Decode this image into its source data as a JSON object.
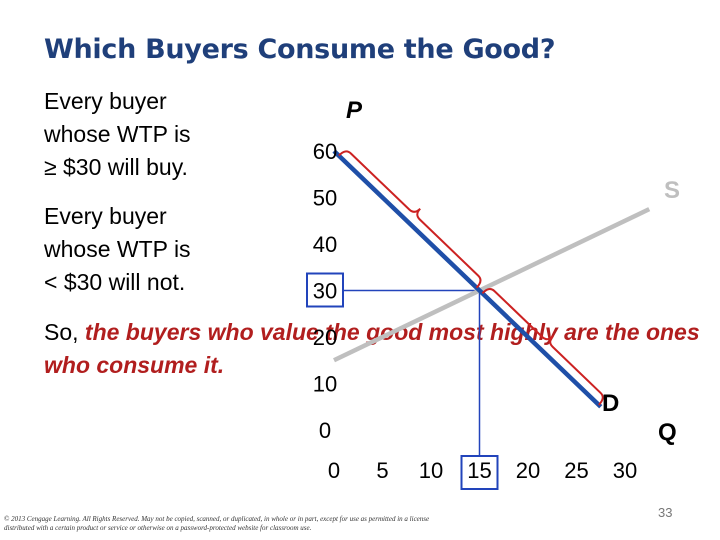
{
  "slide": {
    "title": "Which Buyers Consume the Good?",
    "para1": "Every buyer\nwhose WTP is\n≥ $30 will buy.",
    "para2": "Every buyer\nwhose WTP is\n< $30 will not.",
    "para3_prefix": "So, ",
    "para3_emphasis": "the buyers who value the good most highly are the ones who consume it.",
    "footer": "© 2013 Cengage Learning. All Rights Reserved. May not be copied, scanned, or duplicated, in whole or in part, except for use as permitted in a license distributed with a certain product or service or otherwise on a password-protected website for classroom use.",
    "page_number": "33"
  },
  "colors": {
    "title": "#1f3f7a",
    "demand": "#1f4fa8",
    "supply": "#bfbfbf",
    "brace": "#cc2222",
    "emphasis": "#b11e1e",
    "highlight_box": "#2244bb"
  },
  "chart_data": {
    "type": "line",
    "title": "",
    "xlabel": "Q",
    "ylabel": "P",
    "xlim": [
      0,
      30
    ],
    "ylim": [
      0,
      60
    ],
    "x_ticks": [
      "0",
      "5",
      "10",
      "15",
      "20",
      "25",
      "30"
    ],
    "y_ticks": [
      "0",
      "10",
      "20",
      "30",
      "40",
      "50",
      "60"
    ],
    "highlighted_x_tick": "15",
    "highlighted_y_tick": "30",
    "series": [
      {
        "name": "D",
        "x": [
          0,
          27.5
        ],
        "y": [
          60,
          5
        ]
      },
      {
        "name": "S",
        "x": [
          0,
          32.5
        ],
        "y": [
          15,
          47.5
        ]
      }
    ],
    "equilibrium": {
      "x": 15,
      "y": 30
    }
  }
}
